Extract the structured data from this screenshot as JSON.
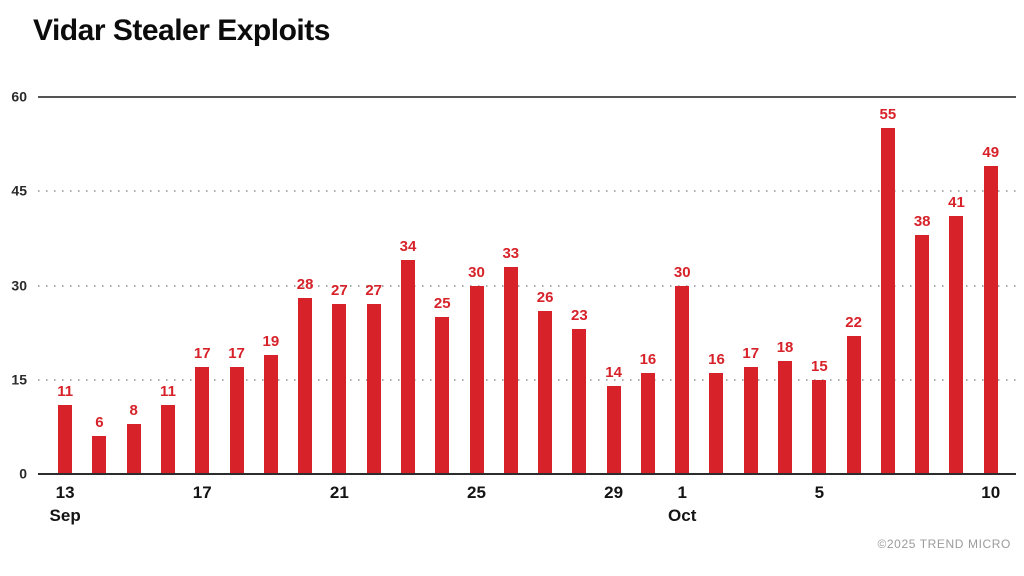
{
  "chart_data": {
    "type": "bar",
    "title": "Vidar Stealer Exploits",
    "categories": [
      "Sep 13",
      "Sep 14",
      "Sep 15",
      "Sep 16",
      "Sep 17",
      "Sep 18",
      "Sep 19",
      "Sep 20",
      "Sep 21",
      "Sep 22",
      "Sep 23",
      "Sep 24",
      "Sep 25",
      "Sep 26",
      "Sep 27",
      "Sep 28",
      "Sep 29",
      "Sep 30",
      "Oct 1",
      "Oct 2",
      "Oct 3",
      "Oct 4",
      "Oct 5",
      "Oct 6",
      "Oct 7",
      "Oct 8",
      "Oct 9",
      "Oct 10"
    ],
    "values": [
      11,
      6,
      8,
      11,
      17,
      17,
      19,
      28,
      27,
      27,
      34,
      25,
      30,
      33,
      26,
      23,
      14,
      16,
      30,
      16,
      17,
      18,
      15,
      22,
      55,
      38,
      41,
      49
    ],
    "x_ticks": [
      {
        "index": 0,
        "label": "13",
        "month": "Sep"
      },
      {
        "index": 4,
        "label": "17",
        "month": ""
      },
      {
        "index": 8,
        "label": "21",
        "month": ""
      },
      {
        "index": 12,
        "label": "25",
        "month": ""
      },
      {
        "index": 16,
        "label": "29",
        "month": ""
      },
      {
        "index": 18,
        "label": "1",
        "month": "Oct"
      },
      {
        "index": 22,
        "label": "5",
        "month": ""
      },
      {
        "index": 27,
        "label": "10",
        "month": ""
      }
    ],
    "y_ticks": [
      0,
      15,
      30,
      45,
      60
    ],
    "ylim": [
      0,
      60
    ],
    "xlabel": "",
    "ylabel": "",
    "legend": "none",
    "grid": "horizontal: solid line at 60, dotted at 45/30/15, solid axis at 0",
    "bar_color": "#d7222a",
    "value_label_color": "#d7222a"
  },
  "footer": {
    "copyright": "©2025 TREND MICRO"
  }
}
